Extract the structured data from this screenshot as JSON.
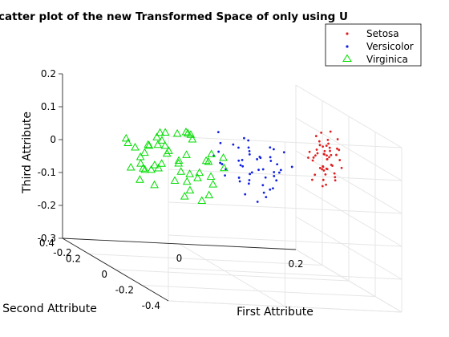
{
  "chart_data": {
    "type": "scatter",
    "projection": "3d",
    "title": "catter plot of the new Transformed Space of only using U",
    "xlabel": "First Attribute",
    "ylabel": "Second Attribute",
    "zlabel": "Third Attribute",
    "xticks": [
      "-0.2",
      "0",
      "0.2"
    ],
    "yticks": [
      "-0.4",
      "-0.2",
      "0",
      "0.2",
      "0.4"
    ],
    "zticks": [
      "-0.3",
      "-0.2",
      "-0.1",
      "0",
      "0.1",
      "0.2"
    ],
    "xlim": [
      -0.2,
      0.2
    ],
    "ylim": [
      -0.4,
      0.4
    ],
    "zlim": [
      -0.3,
      0.2
    ],
    "grid": true,
    "legend_position": "top-right",
    "series": [
      {
        "name": "Setosa",
        "marker": "dot",
        "color": "#e02020",
        "points": [
          [
            0.18,
            0.1,
            0.06
          ],
          [
            0.17,
            0.05,
            0.08
          ],
          [
            0.19,
            0.12,
            0.04
          ],
          [
            0.16,
            0.02,
            0.1
          ],
          [
            0.18,
            0.08,
            0.02
          ],
          [
            0.17,
            0.0,
            0.05
          ],
          [
            0.19,
            0.06,
            0.0
          ],
          [
            0.16,
            0.1,
            -0.02
          ],
          [
            0.18,
            -0.02,
            0.07
          ],
          [
            0.17,
            0.14,
            0.03
          ],
          [
            0.19,
            0.03,
            0.09
          ],
          [
            0.16,
            0.07,
            0.12
          ],
          [
            0.18,
            0.11,
            -0.04
          ],
          [
            0.17,
            -0.03,
            0.01
          ],
          [
            0.19,
            0.09,
            0.06
          ],
          [
            0.16,
            0.04,
            0.03
          ],
          [
            0.18,
            0.13,
            0.08
          ],
          [
            0.17,
            0.06,
            -0.01
          ],
          [
            0.19,
            0.01,
            0.04
          ],
          [
            0.16,
            0.12,
            0.06
          ],
          [
            0.18,
            0.05,
            0.14
          ],
          [
            0.17,
            0.09,
            0.1
          ],
          [
            0.19,
            0.15,
            0.01
          ],
          [
            0.16,
            -0.01,
            0.08
          ],
          [
            0.18,
            0.07,
            0.11
          ],
          [
            0.17,
            0.03,
            0.06
          ],
          [
            0.19,
            0.11,
            0.09
          ],
          [
            0.16,
            0.08,
            0.0
          ],
          [
            0.18,
            0.02,
            0.02
          ],
          [
            0.17,
            0.12,
            0.05
          ],
          [
            0.19,
            0.04,
            0.12
          ],
          [
            0.16,
            0.06,
            0.07
          ],
          [
            0.18,
            0.1,
            0.01
          ],
          [
            0.17,
            0.01,
            0.09
          ],
          [
            0.19,
            0.08,
            0.03
          ],
          [
            0.16,
            0.13,
            0.04
          ],
          [
            0.18,
            0.0,
            0.1
          ],
          [
            0.17,
            0.07,
            0.02
          ],
          [
            0.19,
            0.05,
            0.07
          ],
          [
            0.16,
            0.09,
            0.05
          ],
          [
            0.18,
            0.12,
            0.12
          ],
          [
            0.17,
            0.04,
            -0.02
          ],
          [
            0.19,
            0.1,
            0.08
          ],
          [
            0.16,
            0.02,
            0.04
          ],
          [
            0.18,
            0.06,
            0.06
          ],
          [
            0.17,
            0.11,
            0.07
          ],
          [
            0.19,
            0.14,
            0.05
          ],
          [
            0.16,
            0.0,
            0.02
          ],
          [
            0.18,
            0.08,
            0.09
          ],
          [
            0.17,
            0.03,
            0.03
          ]
        ]
      },
      {
        "name": "Versicolor",
        "marker": "dot",
        "color": "#1020e0",
        "points": [
          [
            0.02,
            0.08,
            0.08
          ],
          [
            0.05,
            0.02,
            0.02
          ],
          [
            0.0,
            -0.05,
            0.06
          ],
          [
            0.08,
            0.1,
            -0.02
          ],
          [
            0.03,
            -0.1,
            0.0
          ],
          [
            0.06,
            0.05,
            0.05
          ],
          [
            -0.02,
            0.0,
            0.1
          ],
          [
            0.04,
            -0.08,
            -0.04
          ],
          [
            0.07,
            0.12,
            0.03
          ],
          [
            0.01,
            -0.02,
            0.04
          ],
          [
            0.05,
            -0.12,
            0.07
          ],
          [
            0.09,
            0.04,
            0.01
          ],
          [
            -0.01,
            0.06,
            0.12
          ],
          [
            0.03,
            -0.06,
            -0.06
          ],
          [
            0.06,
            0.14,
            0.06
          ],
          [
            0.02,
            0.03,
            -0.02
          ],
          [
            0.08,
            -0.04,
            0.09
          ],
          [
            0.0,
            0.09,
            0.02
          ],
          [
            0.04,
            -0.14,
            0.05
          ],
          [
            0.07,
            0.0,
            -0.03
          ],
          [
            -0.03,
            -0.03,
            0.08
          ],
          [
            0.05,
            0.07,
            0.0
          ],
          [
            0.01,
            -0.09,
            0.03
          ],
          [
            0.09,
            0.11,
            0.07
          ],
          [
            0.03,
            0.01,
            0.11
          ],
          [
            0.06,
            -0.07,
            0.01
          ],
          [
            -0.02,
            0.05,
            0.05
          ],
          [
            0.04,
            -0.11,
            -0.01
          ],
          [
            0.08,
            0.06,
            0.04
          ],
          [
            0.02,
            -0.01,
            -0.05
          ],
          [
            0.05,
            0.13,
            0.09
          ],
          [
            0.0,
            -0.13,
            0.02
          ],
          [
            0.07,
            0.02,
            0.06
          ],
          [
            0.03,
            0.08,
            -0.02
          ],
          [
            0.06,
            -0.05,
            0.1
          ],
          [
            -0.01,
            0.01,
            0.0
          ],
          [
            0.04,
            0.1,
            0.03
          ],
          [
            0.08,
            -0.1,
            0.06
          ],
          [
            0.02,
            0.04,
            0.08
          ],
          [
            0.05,
            -0.02,
            -0.04
          ],
          [
            0.01,
            0.12,
            0.01
          ],
          [
            0.07,
            -0.06,
            0.04
          ],
          [
            0.03,
            0.0,
            0.07
          ],
          [
            0.09,
            0.08,
            -0.01
          ],
          [
            0.0,
            -0.08,
            0.05
          ],
          [
            0.06,
            0.03,
            0.02
          ],
          [
            0.02,
            -0.12,
            0.09
          ],
          [
            0.05,
            0.09,
            0.06
          ],
          [
            -0.02,
            -0.04,
            0.03
          ],
          [
            0.04,
            0.05,
            -0.03
          ]
        ]
      },
      {
        "name": "Virginica",
        "marker": "triangle",
        "color": "#00dd00",
        "points": [
          [
            -0.08,
            0.05,
            0.03
          ],
          [
            -0.12,
            -0.05,
            0.08
          ],
          [
            -0.05,
            0.1,
            -0.02
          ],
          [
            -0.15,
            0.0,
            0.06
          ],
          [
            -0.1,
            -0.1,
            0.0
          ],
          [
            -0.06,
            0.15,
            0.09
          ],
          [
            -0.14,
            0.08,
            -0.04
          ],
          [
            -0.09,
            -0.15,
            0.04
          ],
          [
            -0.11,
            0.02,
            0.12
          ],
          [
            -0.07,
            -0.08,
            -0.06
          ],
          [
            -0.13,
            0.12,
            0.02
          ],
          [
            -0.04,
            -0.02,
            0.07
          ],
          [
            -0.16,
            -0.12,
            0.05
          ],
          [
            -0.08,
            0.18,
            -0.01
          ],
          [
            -0.12,
            0.04,
            0.1
          ],
          [
            -0.05,
            -0.06,
            0.01
          ],
          [
            -0.15,
            0.14,
            0.07
          ],
          [
            -0.1,
            -0.18,
            0.03
          ],
          [
            -0.06,
            0.07,
            0.11
          ],
          [
            -0.14,
            -0.03,
            -0.03
          ],
          [
            -0.09,
            0.11,
            0.06
          ],
          [
            -0.11,
            -0.14,
            0.09
          ],
          [
            -0.07,
            0.01,
            -0.05
          ],
          [
            -0.13,
            0.16,
            0.04
          ],
          [
            -0.04,
            -0.11,
            0.08
          ],
          [
            -0.16,
            0.06,
            0.0
          ],
          [
            -0.08,
            -0.04,
            0.13
          ],
          [
            -0.12,
            0.13,
            -0.02
          ],
          [
            -0.05,
            -0.16,
            0.06
          ],
          [
            -0.15,
            0.03,
            0.02
          ],
          [
            -0.1,
            0.09,
            0.08
          ],
          [
            -0.06,
            -0.09,
            -0.04
          ],
          [
            -0.14,
            0.17,
            0.05
          ],
          [
            -0.09,
            -0.01,
            0.01
          ],
          [
            -0.11,
            0.06,
            0.11
          ],
          [
            -0.07,
            -0.13,
            0.07
          ],
          [
            -0.13,
            0.1,
            -0.01
          ],
          [
            -0.04,
            0.02,
            0.04
          ],
          [
            -0.16,
            -0.07,
            0.1
          ],
          [
            -0.08,
            0.14,
            0.03
          ],
          [
            -0.12,
            -0.17,
            -0.03
          ],
          [
            -0.05,
            0.08,
            0.09
          ],
          [
            -0.15,
            -0.05,
            0.02
          ],
          [
            -0.1,
            0.12,
            0.06
          ],
          [
            -0.06,
            -0.12,
            0.0
          ],
          [
            -0.14,
            0.01,
            0.08
          ],
          [
            -0.09,
            0.16,
            -0.02
          ],
          [
            -0.11,
            -0.08,
            0.05
          ],
          [
            -0.07,
            0.04,
            0.12
          ],
          [
            -0.13,
            -0.14,
            0.01
          ]
        ]
      }
    ]
  }
}
